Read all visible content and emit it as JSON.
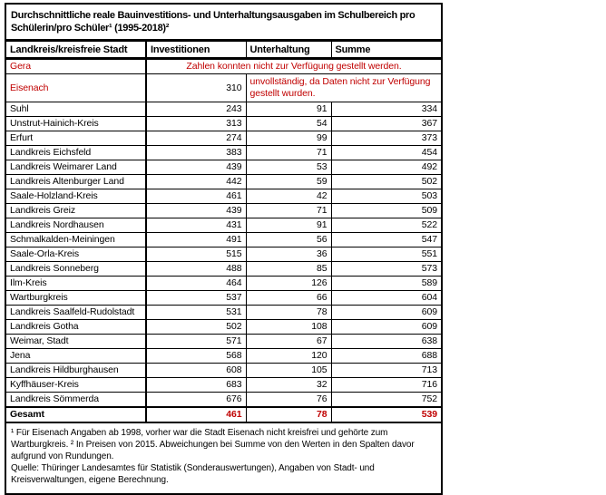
{
  "title": "Durchschnittliche reale Bauinvestitions- und Unterhaltungsausgaben im Schulbereich pro Schülerin/pro Schüler¹ (1995-2018)²",
  "colors": {
    "accent_red": "#C00000",
    "border": "#000000",
    "background": "#FFFFFF"
  },
  "table": {
    "columns": [
      "Landkreis/kreisfreie Stadt",
      "Investitionen",
      "Unterhaltung",
      "Summe"
    ],
    "rows": [
      {
        "type": "note-full",
        "name": "Gera",
        "note": "Zahlen konnten nicht zur Verfügung gestellt werden."
      },
      {
        "type": "note-partial",
        "name": "Eisenach",
        "investitionen": "310",
        "note": "unvollständig, da Daten nicht zur Verfügung gestellt wurden."
      },
      {
        "type": "normal",
        "name": "Suhl",
        "investitionen": "243",
        "unterhaltung": "91",
        "summe": "334"
      },
      {
        "type": "normal",
        "name": "Unstrut-Hainich-Kreis",
        "investitionen": "313",
        "unterhaltung": "54",
        "summe": "367"
      },
      {
        "type": "normal",
        "name": "Erfurt",
        "investitionen": "274",
        "unterhaltung": "99",
        "summe": "373"
      },
      {
        "type": "normal",
        "name": "Landkreis Eichsfeld",
        "investitionen": "383",
        "unterhaltung": "71",
        "summe": "454"
      },
      {
        "type": "normal",
        "name": "Landkreis Weimarer Land",
        "investitionen": "439",
        "unterhaltung": "53",
        "summe": "492"
      },
      {
        "type": "normal",
        "name": "Landkreis Altenburger Land",
        "investitionen": "442",
        "unterhaltung": "59",
        "summe": "502"
      },
      {
        "type": "normal",
        "name": "Saale-Holzland-Kreis",
        "investitionen": "461",
        "unterhaltung": "42",
        "summe": "503"
      },
      {
        "type": "normal",
        "name": "Landkreis Greiz",
        "investitionen": "439",
        "unterhaltung": "71",
        "summe": "509"
      },
      {
        "type": "normal",
        "name": "Landkreis Nordhausen",
        "investitionen": "431",
        "unterhaltung": "91",
        "summe": "522"
      },
      {
        "type": "normal",
        "name": "Schmalkalden-Meiningen",
        "investitionen": "491",
        "unterhaltung": "56",
        "summe": "547"
      },
      {
        "type": "normal",
        "name": "Saale-Orla-Kreis",
        "investitionen": "515",
        "unterhaltung": "36",
        "summe": "551"
      },
      {
        "type": "normal",
        "name": "Landkreis Sonneberg",
        "investitionen": "488",
        "unterhaltung": "85",
        "summe": "573"
      },
      {
        "type": "normal",
        "name": "Ilm-Kreis",
        "investitionen": "464",
        "unterhaltung": "126",
        "summe": "589"
      },
      {
        "type": "normal",
        "name": "Wartburgkreis",
        "investitionen": "537",
        "unterhaltung": "66",
        "summe": "604"
      },
      {
        "type": "normal",
        "name": "Landkreis Saalfeld-Rudolstadt",
        "investitionen": "531",
        "unterhaltung": "78",
        "summe": "609"
      },
      {
        "type": "normal",
        "name": "Landkreis Gotha",
        "investitionen": "502",
        "unterhaltung": "108",
        "summe": "609"
      },
      {
        "type": "normal",
        "name": "Weimar, Stadt",
        "investitionen": "571",
        "unterhaltung": "67",
        "summe": "638"
      },
      {
        "type": "normal",
        "name": "Jena",
        "investitionen": "568",
        "unterhaltung": "120",
        "summe": "688"
      },
      {
        "type": "normal",
        "name": "Landkreis Hildburghausen",
        "investitionen": "608",
        "unterhaltung": "105",
        "summe": "713"
      },
      {
        "type": "normal",
        "name": "Kyffhäuser-Kreis",
        "investitionen": "683",
        "unterhaltung": "32",
        "summe": "716"
      },
      {
        "type": "normal",
        "name": "Landkreis Sömmerda",
        "investitionen": "676",
        "unterhaltung": "76",
        "summe": "752"
      },
      {
        "type": "total",
        "name": "Gesamt",
        "investitionen": "461",
        "unterhaltung": "78",
        "summe": "539"
      }
    ]
  },
  "footnotes": {
    "notes": "¹ Für Eisenach Angaben ab 1998, vorher war die Stadt Eisenach nicht kreisfrei und gehörte zum Wartburgkreis. ² In Preisen von 2015. Abweichungen bei Summe von den Werten in den Spalten davor aufgrund von Rundungen.",
    "source": "Quelle: Thüringer Landesamtes für Statistik (Sonderauswertungen), Angaben von Stadt- und Kreisverwaltungen, eigene Berechnung."
  }
}
